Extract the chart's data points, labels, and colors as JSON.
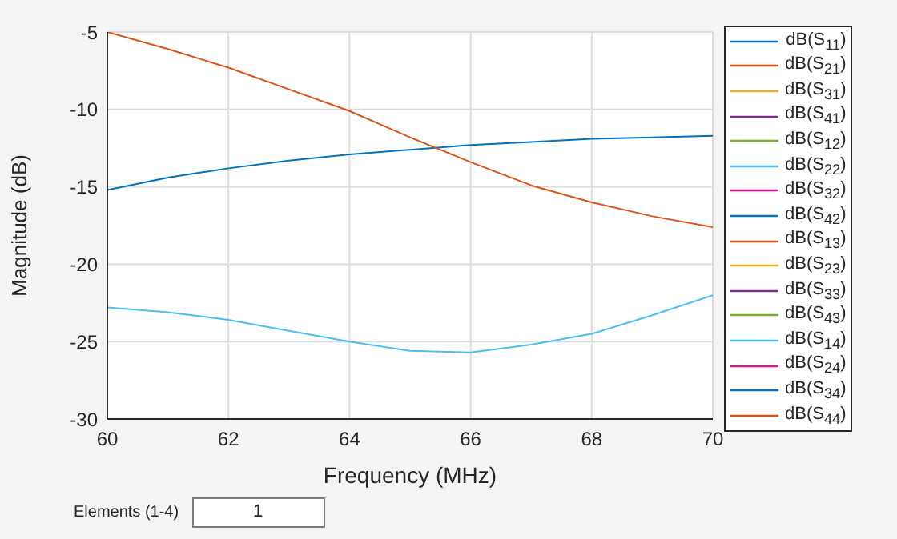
{
  "chart_data": {
    "type": "line",
    "xlabel": "Frequency (MHz)",
    "ylabel": "Magnitude (dB)",
    "x": [
      60,
      61,
      62,
      63,
      64,
      65,
      66,
      67,
      68,
      69,
      70
    ],
    "xlim": [
      60,
      70
    ],
    "xticks": [
      60,
      62,
      64,
      66,
      68,
      70
    ],
    "ylim": [
      -30,
      -5
    ],
    "yticks": [
      -30,
      -25,
      -20,
      -15,
      -10,
      -5
    ],
    "grid": true,
    "legend": "right",
    "marker": "none",
    "line_style": "solid",
    "annotations": [
      "Elements (1-4)",
      "1"
    ],
    "series": [
      {
        "name": "dB(S$_{11}$)",
        "color": "#0072bd",
        "values": [
          -15.2,
          -14.4,
          -13.8,
          -13.3,
          -12.9,
          -12.6,
          -12.3,
          -12.1,
          -11.9,
          -11.8,
          -11.7
        ]
      },
      {
        "name": "dB(S$_{21}$)",
        "color": "#d95319",
        "values": [
          -5,
          -6.1,
          -7.3,
          -8.7,
          -10.1,
          -11.8,
          -13.4,
          -14.9,
          -16.0,
          -16.9,
          -17.6
        ]
      },
      {
        "name": "dB(S$_{31}$)",
        "color": "#edb120",
        "values": [
          null,
          null,
          null,
          null,
          null,
          null,
          null,
          null,
          null,
          null,
          null
        ]
      },
      {
        "name": "dB(S$_{41}$)",
        "color": "#7e2f8e",
        "values": [
          null,
          null,
          null,
          null,
          null,
          null,
          null,
          null,
          null,
          null,
          null
        ]
      },
      {
        "name": "dB(S$_{12}$)",
        "color": "#77ac30",
        "values": [
          null,
          null,
          null,
          null,
          null,
          null,
          null,
          null,
          null,
          null,
          null
        ]
      },
      {
        "name": "dB(S$_{22}$)",
        "color": "#4dbeee",
        "values": [
          -22.8,
          -23.1,
          -23.6,
          -24.3,
          -25.0,
          -25.6,
          -25.7,
          -25.2,
          -24.5,
          -23.3,
          -22.0
        ]
      },
      {
        "name": "dB(S$_{32}$)",
        "color": "#e0118c",
        "values": [
          null,
          null,
          null,
          null,
          null,
          null,
          null,
          null,
          null,
          null,
          null
        ]
      },
      {
        "name": "dB(S$_{42}$)",
        "color": "#0072bd",
        "values": [
          null,
          null,
          null,
          null,
          null,
          null,
          null,
          null,
          null,
          null,
          null
        ]
      },
      {
        "name": "dB(S$_{13}$)",
        "color": "#d95319",
        "values": [
          null,
          null,
          null,
          null,
          null,
          null,
          null,
          null,
          null,
          null,
          null
        ]
      },
      {
        "name": "dB(S$_{23}$)",
        "color": "#edb120",
        "values": [
          null,
          null,
          null,
          null,
          null,
          null,
          null,
          null,
          null,
          null,
          null
        ]
      },
      {
        "name": "dB(S$_{33}$)",
        "color": "#7e2f8e",
        "values": [
          null,
          null,
          null,
          null,
          null,
          null,
          null,
          null,
          null,
          null,
          null
        ]
      },
      {
        "name": "dB(S$_{43}$)",
        "color": "#77ac30",
        "values": [
          null,
          null,
          null,
          null,
          null,
          null,
          null,
          null,
          null,
          null,
          null
        ]
      },
      {
        "name": "dB(S$_{14}$)",
        "color": "#4dbeee",
        "values": [
          null,
          null,
          null,
          null,
          null,
          null,
          null,
          null,
          null,
          null,
          null
        ]
      },
      {
        "name": "dB(S$_{24}$)",
        "color": "#e0118c",
        "values": [
          null,
          null,
          null,
          null,
          null,
          null,
          null,
          null,
          null,
          null,
          null
        ]
      },
      {
        "name": "dB(S$_{34}$)",
        "color": "#0072bd",
        "values": [
          null,
          null,
          null,
          null,
          null,
          null,
          null,
          null,
          null,
          null,
          null
        ]
      },
      {
        "name": "dB(S$_{44}$)",
        "color": "#d95319",
        "values": [
          null,
          null,
          null,
          null,
          null,
          null,
          null,
          null,
          null,
          null,
          null
        ]
      }
    ]
  }
}
